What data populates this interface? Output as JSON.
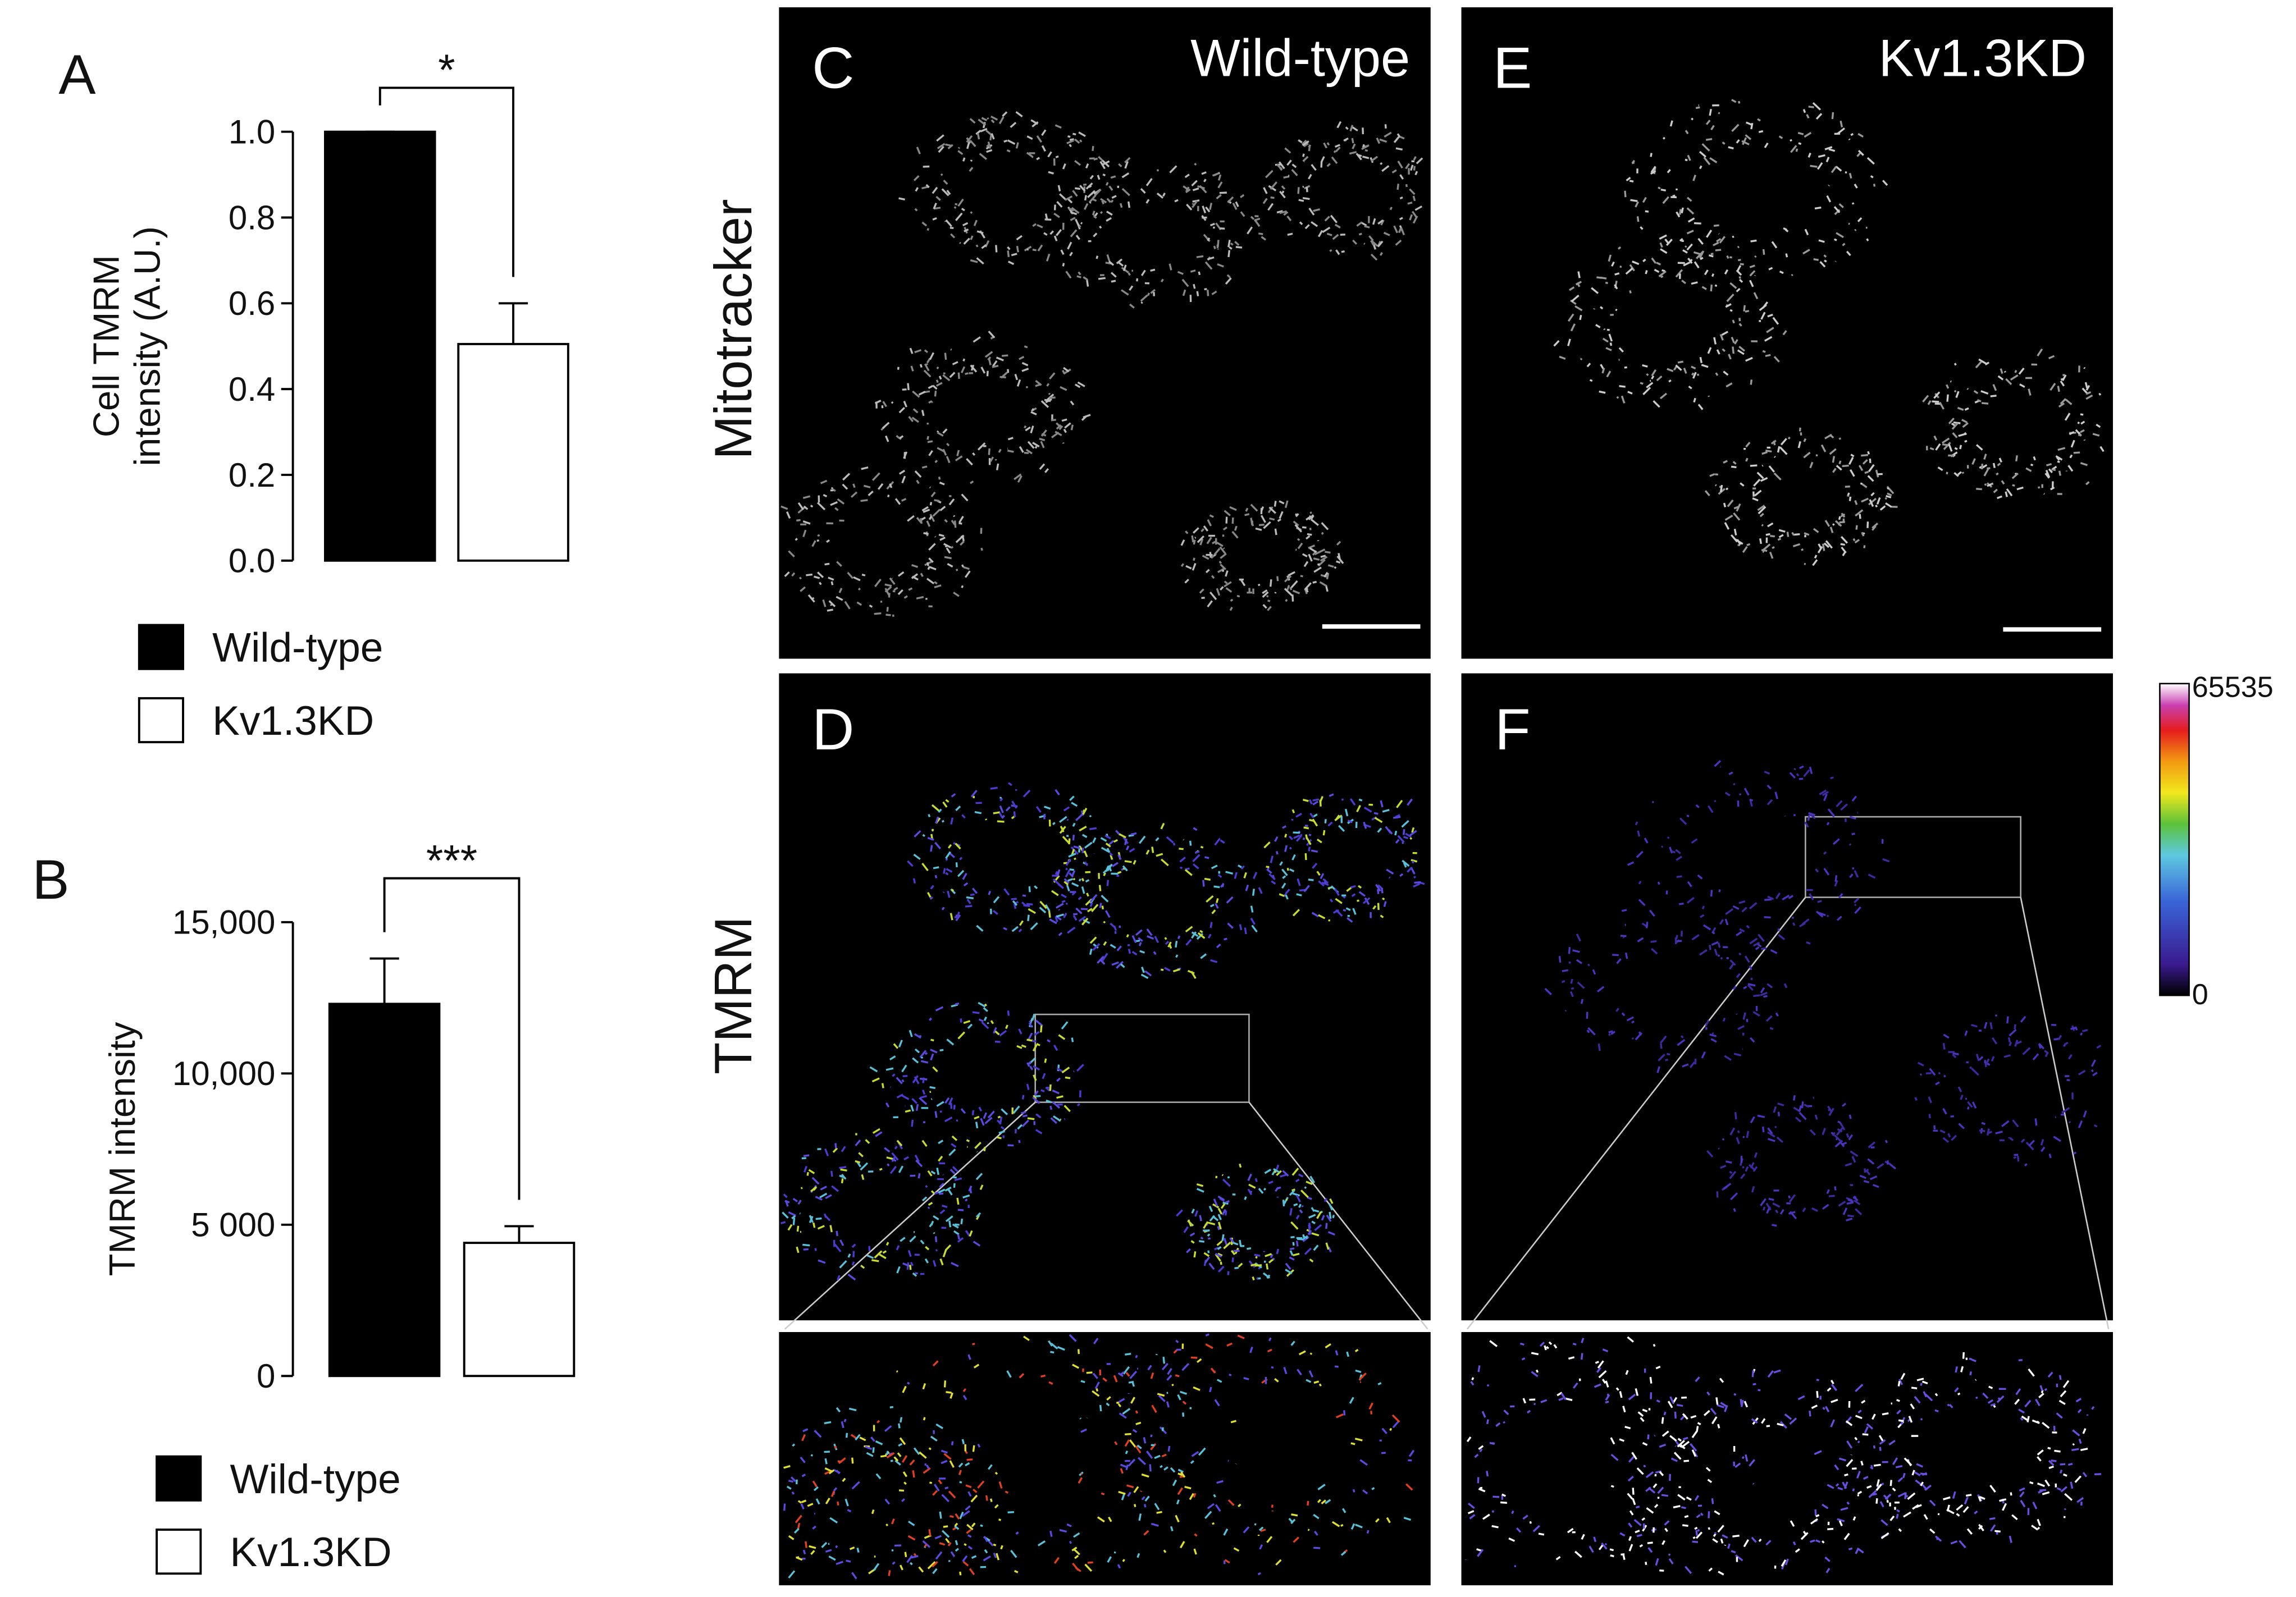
{
  "chart_data": [
    {
      "type": "bar",
      "panel": "A",
      "y_label": [
        "Cell TMRM",
        "intensity (A.U.)"
      ],
      "categories": [
        "Wild-type",
        "Kv1.3KD"
      ],
      "values": [
        1.0,
        0.505
      ],
      "errors": [
        0,
        0.095
      ],
      "colors": [
        "#000000",
        "#ffffff"
      ],
      "significance": "*",
      "ylim": [
        0,
        1.0
      ],
      "yticks": [
        {
          "value": 0,
          "label": "0.0"
        },
        0.2,
        0.4,
        0.6,
        0.8,
        {
          "value": 1.0,
          "label": "1.0"
        }
      ]
    },
    {
      "type": "bar",
      "panel": "B",
      "y_label": [
        "TMRM intensity"
      ],
      "categories": [
        "Wild-type",
        "Kv1.3KD"
      ],
      "values": [
        12300,
        4400
      ],
      "errors": [
        1500,
        550
      ],
      "colors": [
        "#000000",
        "#ffffff"
      ],
      "significance": "***",
      "ylim": [
        0,
        15000
      ],
      "yticks": [
        0,
        {
          "value": 5000,
          "label": "5 000"
        },
        {
          "value": 10000,
          "label": "10,000"
        },
        {
          "value": 15000,
          "label": "15,000"
        }
      ]
    }
  ],
  "figure": {
    "panels": [
      {
        "label": "C",
        "title": "Wild-type"
      },
      {
        "label": "E",
        "title": "Kv1.3KD"
      },
      {
        "label": "D"
      },
      {
        "label": "F"
      }
    ],
    "row_labels": [
      "Mitotracker",
      "TMRM"
    ],
    "colorbar": {
      "max": 65535,
      "min": 0
    }
  }
}
